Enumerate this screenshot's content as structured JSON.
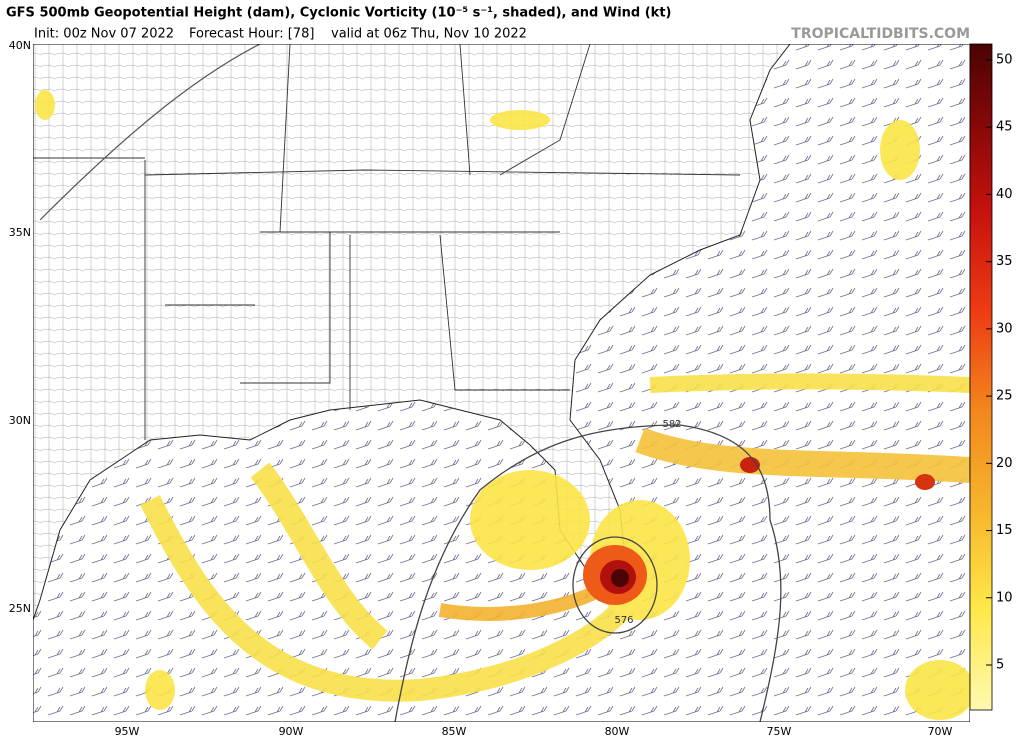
{
  "header": {
    "title": "GFS 500mb Geopotential Height (dam), Cyclonic Vorticity (10⁻⁵ s⁻¹, shaded), and Wind (kt)",
    "init": "Init: 00z Nov 07 2022",
    "forecast_hour": "Forecast Hour: [78]",
    "valid": "valid at 06z Thu, Nov 10 2022",
    "source": "TROPICALTIDBITS.COM"
  },
  "map": {
    "latitude_labels": [
      "40N",
      "35N",
      "30N",
      "25N"
    ],
    "longitude_labels": [
      "95W",
      "90W",
      "85W",
      "80W",
      "75W",
      "70W"
    ],
    "contour_labels": [
      "582",
      "576"
    ]
  },
  "colorbar": {
    "ticks": [
      5,
      10,
      15,
      20,
      25,
      30,
      35,
      40,
      45,
      50
    ]
  }
}
